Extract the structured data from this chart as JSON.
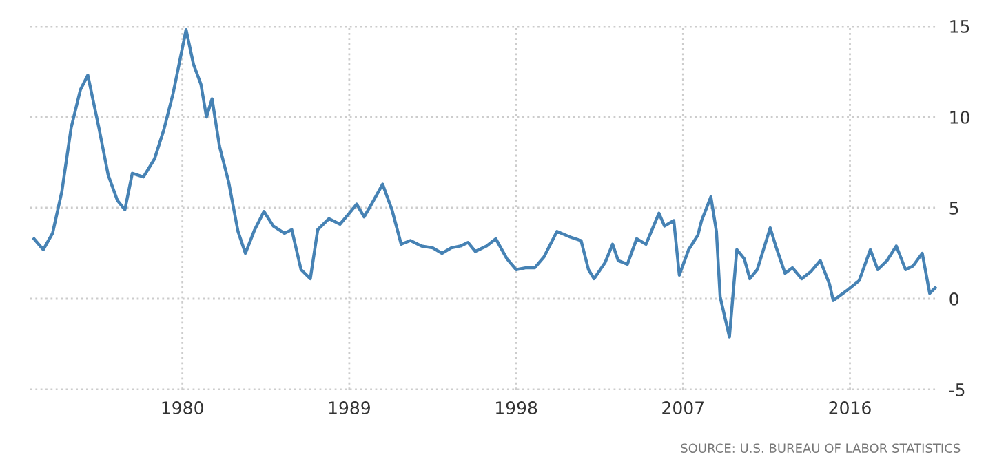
{
  "chart_data": {
    "type": "line",
    "annotations": [
      "SOURCE: U.S. BUREAU OF LABOR STATISTICS"
    ],
    "x": [
      1972.0,
      1972.5,
      1973.0,
      1973.5,
      1974.0,
      1974.5,
      1974.9,
      1975.5,
      1976.0,
      1976.5,
      1976.9,
      1977.3,
      1977.9,
      1978.5,
      1979.0,
      1979.5,
      1980.2,
      1980.6,
      1981.0,
      1981.3,
      1981.6,
      1982.0,
      1982.5,
      1983.0,
      1983.4,
      1983.9,
      1984.4,
      1984.9,
      1985.5,
      1985.9,
      1986.4,
      1986.9,
      1987.3,
      1987.9,
      1988.5,
      1989.0,
      1989.4,
      1989.8,
      1990.2,
      1990.8,
      1991.3,
      1991.8,
      1992.3,
      1992.9,
      1993.5,
      1994.0,
      1994.5,
      1995.0,
      1995.4,
      1995.8,
      1996.4,
      1996.9,
      1997.5,
      1998.0,
      1998.5,
      1999.0,
      1999.5,
      2000.2,
      2000.9,
      2001.5,
      2001.9,
      2002.2,
      2002.8,
      2003.2,
      2003.5,
      2004.0,
      2004.5,
      2005.0,
      2005.7,
      2006.0,
      2006.5,
      2006.8,
      2007.3,
      2007.8,
      2008.0,
      2008.5,
      2008.8,
      2009.0,
      2009.5,
      2009.9,
      2010.3,
      2010.6,
      2011.0,
      2011.7,
      2012.0,
      2012.5,
      2012.9,
      2013.4,
      2013.9,
      2014.4,
      2014.9,
      2015.1,
      2015.9,
      2016.5,
      2017.1,
      2017.5,
      2018.0,
      2018.5,
      2019.0,
      2019.4,
      2019.9,
      2020.3,
      2020.6
    ],
    "series": [
      {
        "color": "#4682b4",
        "values": [
          3.3,
          2.7,
          3.6,
          5.9,
          9.4,
          11.5,
          12.3,
          9.4,
          6.8,
          5.4,
          4.9,
          6.9,
          6.7,
          7.7,
          9.3,
          11.3,
          14.8,
          12.9,
          11.8,
          10.0,
          11.0,
          8.4,
          6.4,
          3.7,
          2.5,
          3.8,
          4.8,
          4.0,
          3.6,
          3.8,
          1.6,
          1.1,
          3.8,
          4.4,
          4.1,
          4.7,
          5.2,
          4.5,
          5.2,
          6.3,
          4.9,
          3.0,
          3.2,
          2.9,
          2.8,
          2.5,
          2.8,
          2.9,
          3.1,
          2.6,
          2.9,
          3.3,
          2.2,
          1.6,
          1.7,
          1.7,
          2.3,
          3.7,
          3.4,
          3.2,
          1.6,
          1.1,
          2.0,
          3.0,
          2.1,
          1.9,
          3.3,
          3.0,
          4.7,
          4.0,
          4.3,
          1.3,
          2.7,
          3.5,
          4.3,
          5.6,
          3.7,
          0.1,
          -2.1,
          2.7,
          2.2,
          1.1,
          1.6,
          3.9,
          2.9,
          1.4,
          1.7,
          1.1,
          1.5,
          2.1,
          0.8,
          -0.1,
          0.5,
          1.0,
          2.7,
          1.6,
          2.1,
          2.9,
          1.6,
          1.8,
          2.5,
          0.3,
          0.6
        ]
      }
    ],
    "xlim": [
      1971.8,
      2020.7
    ],
    "xticks": [
      1980,
      1989,
      1998,
      2007,
      2016
    ],
    "ylim": [
      -5,
      15
    ],
    "yticks": [
      -5,
      0,
      5,
      10,
      15
    ],
    "grid": true,
    "line_style": "solid",
    "marker": "none"
  }
}
